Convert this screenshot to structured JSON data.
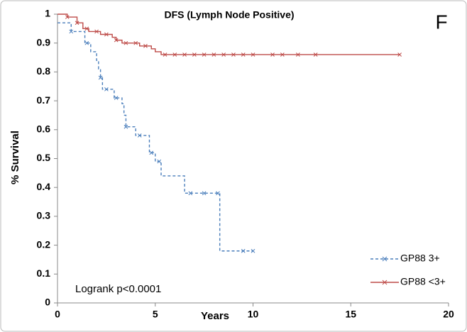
{
  "chart_data": {
    "type": "line",
    "step": "post",
    "title": "DFS (Lymph Node Positive)",
    "panel_label": "F",
    "xlabel": "Years",
    "ylabel": "% Survival",
    "annotation": "Logrank p<0.0001",
    "xlim": [
      0,
      20
    ],
    "xticks": [
      0,
      5,
      10,
      15,
      20
    ],
    "ylim": [
      0,
      1
    ],
    "yticks": [
      0,
      0.1,
      0.2,
      0.3,
      0.4,
      0.5,
      0.6,
      0.7,
      0.8,
      0.9,
      1
    ],
    "legend": "lower right",
    "series": [
      {
        "name": "GP88 3+",
        "color": "#4a7ebb",
        "dash": true,
        "x": [
          0,
          0.7,
          1.4,
          1.7,
          2.0,
          2.1,
          2.2,
          2.3,
          2.9,
          3.3,
          3.4,
          3.5,
          4.0,
          4.7,
          5.0,
          5.3,
          6.5,
          8.3,
          10.0
        ],
        "values": [
          0.97,
          0.94,
          0.9,
          0.87,
          0.84,
          0.81,
          0.78,
          0.74,
          0.71,
          0.69,
          0.65,
          0.61,
          0.58,
          0.52,
          0.49,
          0.44,
          0.38,
          0.18,
          0.18
        ],
        "censored": {
          "x": [
            0.7,
            1.5,
            2.2,
            2.5,
            3.0,
            3.5,
            4.2,
            4.8,
            5.2,
            6.8,
            7.5,
            8.2,
            9.5,
            10.0
          ],
          "values": [
            0.94,
            0.9,
            0.78,
            0.74,
            0.71,
            0.61,
            0.58,
            0.52,
            0.49,
            0.38,
            0.38,
            0.38,
            0.18,
            0.18
          ]
        }
      },
      {
        "name": "GP88 <3+",
        "color": "#be4b48",
        "dash": false,
        "x": [
          0,
          0.5,
          1.0,
          1.3,
          1.6,
          2.2,
          2.8,
          3.0,
          3.3,
          4.2,
          4.8,
          5.0,
          5.3,
          17.5
        ],
        "values": [
          1,
          0.99,
          0.97,
          0.95,
          0.94,
          0.93,
          0.92,
          0.91,
          0.9,
          0.89,
          0.88,
          0.87,
          0.86,
          0.86
        ],
        "censored": {
          "x": [
            0.5,
            1.0,
            1.5,
            2.0,
            2.5,
            3.0,
            3.5,
            4.0,
            4.5,
            5.5,
            6.0,
            6.5,
            7.0,
            7.5,
            8.0,
            8.5,
            9.0,
            9.5,
            10.0,
            11.0,
            11.5,
            12.3,
            13.2,
            17.5
          ],
          "values": [
            0.99,
            0.97,
            0.95,
            0.94,
            0.93,
            0.91,
            0.9,
            0.9,
            0.89,
            0.86,
            0.86,
            0.86,
            0.86,
            0.86,
            0.86,
            0.86,
            0.86,
            0.86,
            0.86,
            0.86,
            0.86,
            0.86,
            0.86,
            0.86
          ]
        }
      }
    ]
  }
}
